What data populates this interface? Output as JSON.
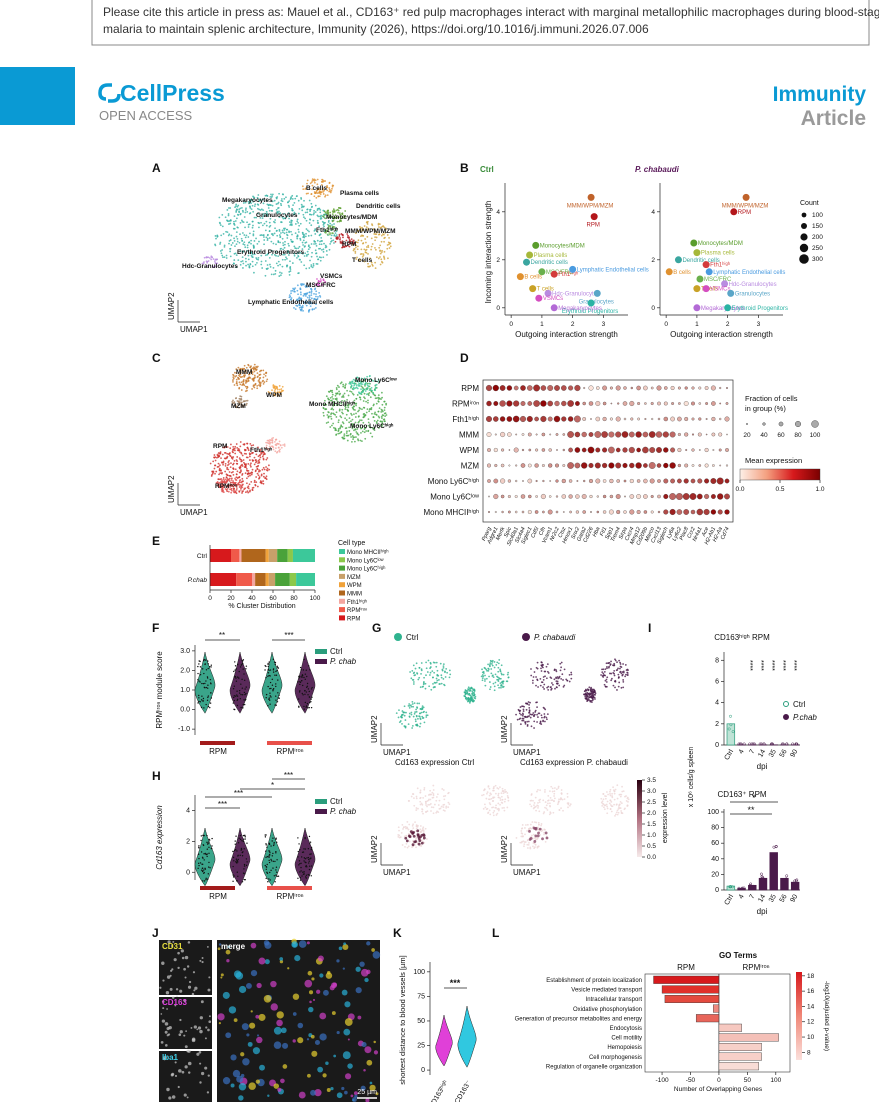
{
  "header": {
    "citation_1": "Please cite this article in press as: Mauel et al., CD163⁺ red pulp macrophages interact with marginal metallophilic macrophages during blood-stage",
    "citation_2": "malaria to maintain splenic architecture, Immunity (2026), https://doi.org/10.1016/j.immuni.2026.07.006"
  },
  "brand": {
    "name": "CellPress",
    "access": "OPEN ACCESS",
    "journal": "Immunity",
    "article_type": "Article"
  },
  "figure": {
    "A": {
      "letter": "A",
      "clusters": [
        "Megakaryocytes",
        "Granulocytes",
        "B cells",
        "Plasma cells",
        "Dendritic cells",
        "Monocytes/MDM",
        "Fth1ʰⁱᵍʰ",
        "MMM/WPM/MZM",
        "RPM",
        "Erythroid Progenitors",
        "T cells",
        "Hdc-Granulocytes",
        "VSMCs",
        "MSC/FRC",
        "Lymphatic Endothelial cells"
      ],
      "axis_x": "UMAP1",
      "axis_y": "UMAP2"
    },
    "B": {
      "letter": "B",
      "x_label": "Outgoing interaction strength",
      "y_label": "Incoming interaction strength",
      "xlim": [
        -0.2,
        3.8
      ],
      "ylim": [
        -0.3,
        5.2
      ],
      "xticks": [
        0,
        1,
        2,
        3
      ],
      "yticks": [
        0,
        2,
        4
      ],
      "legend_title": "Count",
      "legend_values": [
        100,
        150,
        200,
        250,
        300
      ],
      "plots": [
        {
          "title": "Ctrl",
          "points": [
            {
              "name": "MMM/WPM/MZM",
              "x": 2.6,
              "y": 4.6,
              "color": "#c0622a"
            },
            {
              "name": "RPM",
              "x": 2.7,
              "y": 3.8,
              "color": "#b3161b"
            },
            {
              "name": "Monocytes/MDM",
              "x": 0.8,
              "y": 2.6,
              "color": "#5a9d2c"
            },
            {
              "name": "Plasma cells",
              "x": 0.6,
              "y": 2.2,
              "color": "#a6b83a"
            },
            {
              "name": "Dendritic cells",
              "x": 0.5,
              "y": 1.9,
              "color": "#3aa6a0"
            },
            {
              "name": "MSC/FRC",
              "x": 1.0,
              "y": 1.5,
              "color": "#6ab04c"
            },
            {
              "name": "Fth1ʰⁱᵍʰ",
              "x": 1.4,
              "y": 1.4,
              "color": "#d43b3b"
            },
            {
              "name": "Lymphatic Endothelial cells",
              "x": 2.0,
              "y": 1.6,
              "color": "#4a9be0"
            },
            {
              "name": "B cells",
              "x": 0.3,
              "y": 1.3,
              "color": "#e0912f"
            },
            {
              "name": "T cells",
              "x": 0.7,
              "y": 0.8,
              "color": "#c9a227"
            },
            {
              "name": "Hdc-Granulocytes",
              "x": 1.2,
              "y": 0.6,
              "color": "#b98be0"
            },
            {
              "name": "Granulocytes",
              "x": 2.8,
              "y": 0.6,
              "color": "#5aa6c8"
            },
            {
              "name": "VSMCs",
              "x": 0.9,
              "y": 0.4,
              "color": "#d44ec0"
            },
            {
              "name": "Erythroid Progenitors",
              "x": 2.6,
              "y": 0.2,
              "color": "#2bb3a4"
            },
            {
              "name": "Megakaryocytes",
              "x": 1.4,
              "y": 0.0,
              "color": "#b36ad6"
            }
          ]
        },
        {
          "title": "P. chabaudi",
          "points": [
            {
              "name": "MMM/WPM/MZM",
              "x": 2.6,
              "y": 4.6,
              "color": "#c0622a"
            },
            {
              "name": "RPM",
              "x": 2.2,
              "y": 4.0,
              "color": "#b3161b"
            },
            {
              "name": "Monocytes/MDM",
              "x": 0.9,
              "y": 2.7,
              "color": "#5a9d2c"
            },
            {
              "name": "Plasma cells",
              "x": 1.0,
              "y": 2.3,
              "color": "#a6b83a"
            },
            {
              "name": "Dendritic cells",
              "x": 0.4,
              "y": 2.0,
              "color": "#3aa6a0"
            },
            {
              "name": "Fth1ʰⁱᵍʰ",
              "x": 1.3,
              "y": 1.8,
              "color": "#d43b3b"
            },
            {
              "name": "B cells",
              "x": 0.1,
              "y": 1.5,
              "color": "#e0912f"
            },
            {
              "name": "Lymphatic Endothelial cells",
              "x": 1.4,
              "y": 1.5,
              "color": "#4a9be0"
            },
            {
              "name": "MSC/FRC",
              "x": 1.1,
              "y": 1.2,
              "color": "#6ab04c"
            },
            {
              "name": "Hdc-Granulocytes",
              "x": 1.9,
              "y": 1.0,
              "color": "#b98be0"
            },
            {
              "name": "T cells",
              "x": 1.0,
              "y": 0.8,
              "color": "#c9a227"
            },
            {
              "name": "VSMCs",
              "x": 1.3,
              "y": 0.8,
              "color": "#d44ec0"
            },
            {
              "name": "Granulocytes",
              "x": 2.1,
              "y": 0.6,
              "color": "#5aa6c8"
            },
            {
              "name": "Megakaryocytes",
              "x": 1.0,
              "y": 0.0,
              "color": "#b36ad6"
            },
            {
              "name": "Erythroid Progenitors",
              "x": 2.0,
              "y": 0.0,
              "color": "#2bb3a4"
            }
          ]
        }
      ]
    },
    "C": {
      "letter": "C",
      "clusters": [
        "MMM",
        "WPM",
        "MZM",
        "RPM",
        "Fth1ʰⁱᵍʰ",
        "RPMⁱʳᵒⁿ",
        "Mono Ly6Cˡᵒʷ",
        "Mono MHCIIʰⁱᵍʰ",
        "Mono Ly6Cʰⁱᵍʰ"
      ],
      "axis_x": "UMAP1",
      "axis_y": "UMAP2"
    },
    "D": {
      "letter": "D",
      "rows": [
        "RPM",
        "RPMⁱʳᵒⁿ",
        "Fth1ʰⁱᵍʰ",
        "MMM",
        "WPM",
        "MZM",
        "Mono Ly6Cʰⁱᵍʰ",
        "Mono Ly6Cˡᵒʷ",
        "Mono MHCIIʰⁱᵍʰ"
      ],
      "genes": [
        "Pparg",
        "Adgre1",
        "Mertk",
        "Spic",
        "Slc40a1",
        "Slc4a4",
        "Siglec1",
        "Cd5l",
        "Cfh",
        "Vcam1",
        "Nr2c2",
        "Ctsz",
        "Hmox1",
        "Snx2",
        "Gata2",
        "Cd226",
        "Hba",
        "Ftl1",
        "Spp1",
        "Trem4",
        "Sirpa",
        "Cxcr4",
        "Mmp12",
        "Cd209b",
        "Marco",
        "Cxcl13",
        "Siglech",
        "Ly6a",
        "Ly6c2",
        "Plac8",
        "Ccr2",
        "Nr4a1",
        "Ace",
        "H2-Ab1",
        "H2-Aa",
        "Cd74"
      ],
      "size_title_1": "Fraction of cells",
      "size_title_2": "in group (%)",
      "size_values": [
        20,
        40,
        60,
        80,
        100
      ],
      "color_title": "Mean expression",
      "color_ticks": [
        {
          "value": 0,
          "label": "0.0"
        },
        {
          "value": 0.5,
          "label": "0.5"
        },
        {
          "value": 1,
          "label": "1.0"
        }
      ]
    },
    "E": {
      "letter": "E",
      "categories": [
        "Ctrl",
        "P.chab"
      ],
      "x_label": "% Cluster Distribution",
      "xlim": [
        0,
        100
      ],
      "xticks": [
        0,
        20,
        40,
        60,
        80,
        100
      ],
      "legend_title": "Cell type",
      "series": [
        {
          "name": "RPM",
          "color": "#d7191c",
          "values": [
            20,
            25
          ]
        },
        {
          "name": "RPMⁱʳᵒⁿ",
          "color": "#f05a4a",
          "values": [
            8,
            15
          ]
        },
        {
          "name": "Fth1ʰⁱᵍʰ",
          "color": "#f4a6a0",
          "values": [
            2,
            3
          ]
        },
        {
          "name": "MMM",
          "color": "#b0661c",
          "values": [
            23,
            10
          ]
        },
        {
          "name": "WPM",
          "color": "#f0a23a",
          "values": [
            3,
            3
          ]
        },
        {
          "name": "MZM",
          "color": "#c8a06a",
          "values": [
            8,
            6
          ]
        },
        {
          "name": "Mono Ly6Cʰⁱᵍʰ",
          "color": "#4aa23a",
          "values": [
            10,
            14
          ]
        },
        {
          "name": "Mono Ly6Cˡᵒʷ",
          "color": "#8cc84a",
          "values": [
            5,
            6
          ]
        },
        {
          "name": "Mono MHCIIʰⁱᵍʰ",
          "color": "#3cc89a",
          "values": [
            21,
            18
          ]
        }
      ]
    },
    "F": {
      "letter": "F",
      "y_label": "RPMⁱʳᵒⁿ module score",
      "ylim": [
        -1.3,
        3.3
      ],
      "yticks": [
        {
          "value": 3,
          "label": "3.0"
        },
        {
          "value": 2,
          "label": "2.0"
        },
        {
          "value": 1,
          "label": "1.0"
        },
        {
          "value": 0,
          "label": "0.0"
        },
        {
          "value": -1,
          "label": "-1.0"
        }
      ],
      "groups": [
        "RPM",
        "RPMⁱʳᵒⁿ"
      ],
      "significance": [
        "**",
        "***"
      ],
      "legend": [
        {
          "name": "Ctrl",
          "color": "#2a9d7c"
        },
        {
          "name": "P. chab",
          "color": "#4a1a4a"
        }
      ]
    },
    "G": {
      "letter": "G",
      "legend": [
        {
          "name": "Ctrl",
          "color": "#2fb38f"
        },
        {
          "name": "P. chabaudi",
          "color": "#4a1a4a"
        }
      ],
      "axis_x": "UMAP1",
      "axis_y": "UMAP2",
      "title_ctrl": "Cd163 expression Ctrl",
      "title_pchab": "Cd163 expression P. chabaudi",
      "color_label": "expression level",
      "color_ticks": [
        {
          "value": 3.5,
          "label": "3.5"
        },
        {
          "value": 3,
          "label": "3.0"
        },
        {
          "value": 2.5,
          "label": "2.5"
        },
        {
          "value": 2,
          "label": "2.0"
        },
        {
          "value": 1.5,
          "label": "1.5"
        },
        {
          "value": 1,
          "label": "1.0"
        },
        {
          "value": 0.5,
          "label": "0.5"
        },
        {
          "value": 0,
          "label": "0.0"
        }
      ]
    },
    "H": {
      "letter": "H",
      "y_label": "Cd163 expression",
      "ylim": [
        -0.5,
        5
      ],
      "yticks": [
        0,
        2,
        4
      ],
      "groups": [
        "RPM",
        "RPMⁱʳᵒⁿ"
      ],
      "significance": [
        "***",
        "***",
        "*",
        "***"
      ],
      "legend": [
        {
          "name": "Ctrl",
          "color": "#2a9d7c"
        },
        {
          "name": "P. chab",
          "color": "#4a1a4a"
        }
      ]
    },
    "I": {
      "letter": "I",
      "y_label": "x 10⁶ cells/g spleen",
      "x_label": "dpi",
      "categories": [
        "Ctrl",
        "4",
        "7",
        "14",
        "35",
        "56",
        "90"
      ],
      "legend": [
        {
          "name": "Ctrl",
          "color": "#2a9d7c"
        },
        {
          "name": "P.chab",
          "color": "#4a1a4a"
        }
      ],
      "top": {
        "title": "CD163ʰⁱᵍʰ RPM",
        "ylim": [
          0,
          8.5
        ],
        "yticks": [
          0,
          2,
          4,
          6,
          8
        ],
        "values": [
          2.0,
          0.02,
          0.02,
          0.02,
          0.02,
          0.02,
          0.02
        ],
        "significance": [
          "****",
          "****",
          "****",
          "****",
          "****"
        ]
      },
      "bottom": {
        "title": "CD163⁺ RPM",
        "ylim": [
          0,
          100
        ],
        "yticks": [
          0,
          20,
          40,
          60,
          80,
          100
        ],
        "values": [
          5,
          2,
          6,
          15,
          48,
          15,
          10
        ],
        "significance": [
          "*",
          "**"
        ]
      }
    },
    "J": {
      "letter": "J",
      "channels": [
        "CD31",
        "CD163",
        "Iba1"
      ],
      "merge": "merge",
      "scale": "25 µm"
    },
    "K": {
      "letter": "K",
      "y_label": "shortest distance to blood vessels [µm]",
      "ylim": [
        -5,
        110
      ],
      "yticks": [
        0,
        25,
        50,
        75,
        100
      ],
      "categories": [
        "CD163ʰⁱᵍʰ",
        "CD163⁻"
      ],
      "significance": "***"
    },
    "L": {
      "letter": "L",
      "title": "GO Terms",
      "left_header": "RPM",
      "right_header": "RPMⁱʳᵒⁿ",
      "x_label": "Number of Overlapping Genes",
      "xlim": [
        -130,
        125
      ],
      "xticks": [
        -100,
        -50,
        0,
        50,
        100
      ],
      "color_label": "-log10(adjusted p-value)",
      "color_ticks": [
        8,
        10,
        12,
        14,
        16,
        18
      ],
      "categories": [
        "Establishment of protein localization",
        "Vesicle mediated transport",
        "Intracellular transport",
        "Oxidative phosphorylation",
        "Generation of precursor metabolites and energy",
        "Endocytosis",
        "Cell motility",
        "Hemopoiesis",
        "Cell morphogenesis",
        "Regulation of organelle organization"
      ],
      "values": [
        -115,
        -100,
        -95,
        -10,
        -40,
        40,
        105,
        75,
        75,
        70
      ],
      "colors": [
        "#d7191c",
        "#e0302a",
        "#e44a3e",
        "#ee8a80",
        "#e8655a",
        "#f6c8c0",
        "#f4c0b8",
        "#f7d0c8",
        "#f7d0c8",
        "#f9dcd6"
      ]
    }
  }
}
